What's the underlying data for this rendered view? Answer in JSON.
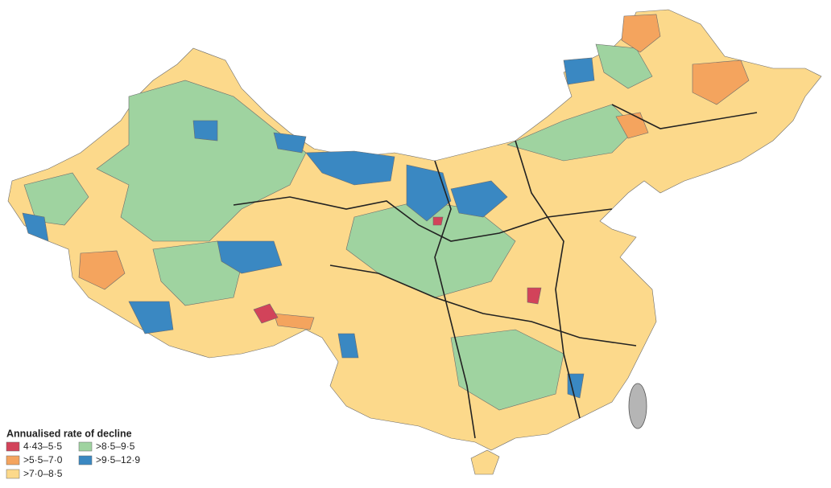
{
  "legend": {
    "title": "Annualised rate of decline",
    "items": [
      {
        "label": "4·43–5·5",
        "color": "#d2435a"
      },
      {
        "label": ">5·5–7·0",
        "color": "#f4a45e"
      },
      {
        "label": ">7·0–8·5",
        "color": "#fcd98b"
      },
      {
        "label": ">8·5–9·5",
        "color": "#9fd3a0"
      },
      {
        "label": ">9·5–12·9",
        "color": "#3a88c2"
      }
    ]
  }
}
